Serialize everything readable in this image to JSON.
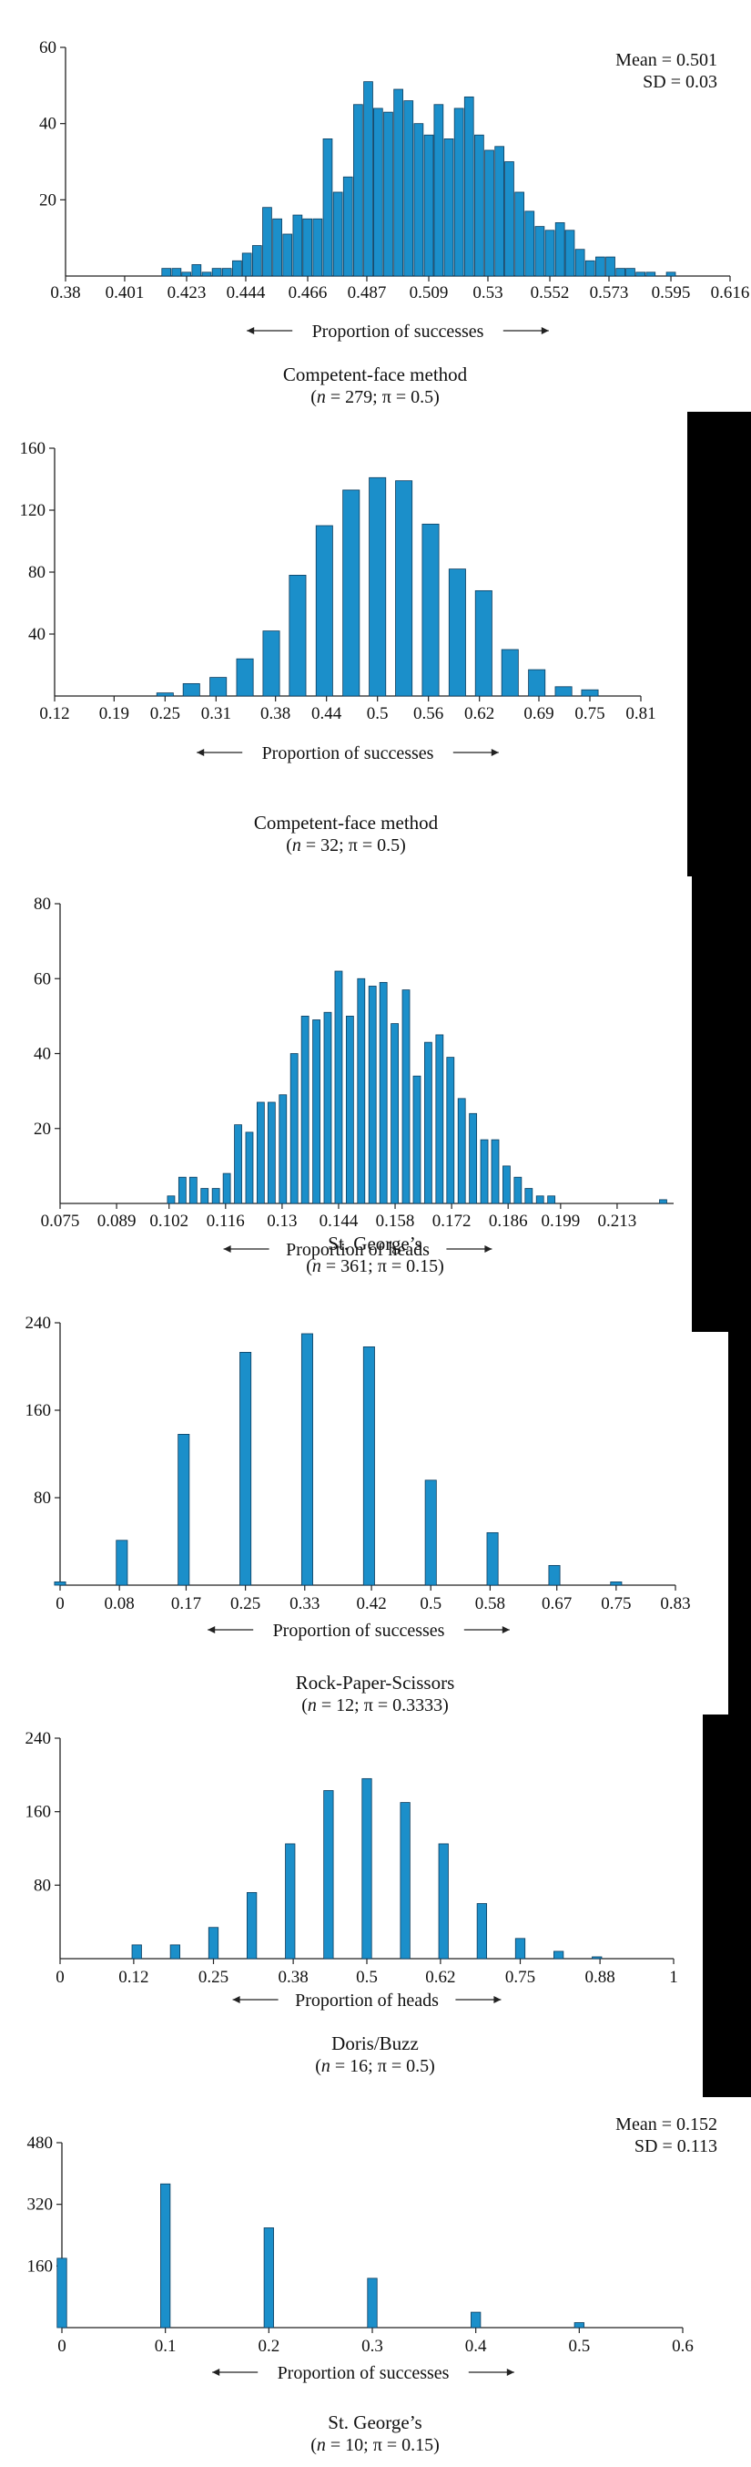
{
  "chart_data": [
    {
      "type": "bar",
      "title": "Competent-face method",
      "subtitle_n": "279",
      "subtitle_pi": "0.5",
      "xlabel": "Proportion of successes",
      "ylim": [
        0,
        60
      ],
      "yticks": [
        20,
        40,
        60
      ],
      "xlim": [
        0.38,
        0.616
      ],
      "xticks": [
        "0.38",
        "0.401",
        "0.423",
        "0.444",
        "0.466",
        "0.487",
        "0.509",
        "0.53",
        "0.552",
        "0.573",
        "0.595",
        "0.616"
      ],
      "stats": [
        "Mean = 0.501",
        "SD = 0.03"
      ],
      "bar_width": 0.0032,
      "x": [
        0.4158,
        0.4194,
        0.4229,
        0.4265,
        0.4301,
        0.4337,
        0.4373,
        0.4409,
        0.4444,
        0.448,
        0.4516,
        0.4552,
        0.4588,
        0.4624,
        0.4659,
        0.4695,
        0.4731,
        0.4767,
        0.4803,
        0.4839,
        0.4875,
        0.491,
        0.4946,
        0.4982,
        0.5018,
        0.5054,
        0.509,
        0.5125,
        0.5161,
        0.5197,
        0.5233,
        0.5269,
        0.5305,
        0.5341,
        0.5376,
        0.5412,
        0.5448,
        0.5484,
        0.552,
        0.5556,
        0.5591,
        0.5627,
        0.5663,
        0.5699,
        0.5735,
        0.5771,
        0.5806,
        0.5842,
        0.5878,
        0.5914,
        0.595
      ],
      "values": [
        2,
        2,
        1,
        3,
        1,
        2,
        2,
        4,
        6,
        8,
        18,
        15,
        11,
        16,
        15,
        15,
        36,
        22,
        26,
        45,
        51,
        44,
        43,
        49,
        46,
        40,
        37,
        45,
        36,
        44,
        47,
        37,
        33,
        34,
        30,
        22,
        17,
        13,
        12,
        14,
        12,
        7,
        4,
        5,
        5,
        2,
        2,
        1,
        1,
        0,
        1
      ]
    },
    {
      "type": "bar",
      "title": "Competent-face method",
      "subtitle_n": "32",
      "subtitle_pi": "0.5",
      "xlabel": "Proportion of successes",
      "ylim": [
        0,
        160
      ],
      "yticks": [
        40,
        80,
        120,
        160
      ],
      "xlim": [
        0.12,
        0.81
      ],
      "xticks": [
        "0.12",
        "0.19",
        "0.25",
        "0.31",
        "0.38",
        "0.44",
        "0.5",
        "0.56",
        "0.62",
        "0.69",
        "0.75",
        "0.81"
      ],
      "bar_width": 0.0195,
      "x": [
        0.25,
        0.281,
        0.3125,
        0.344,
        0.375,
        0.406,
        0.4375,
        0.469,
        0.5,
        0.531,
        0.5625,
        0.594,
        0.625,
        0.656,
        0.6875,
        0.719,
        0.75
      ],
      "values": [
        2,
        8,
        12,
        24,
        42,
        78,
        110,
        133,
        141,
        139,
        111,
        82,
        68,
        30,
        17,
        6,
        4
      ]
    },
    {
      "type": "bar",
      "title": "St. George’s",
      "subtitle_n": "361",
      "subtitle_pi": "0.15",
      "xlabel": "Proportion of heads",
      "ylim": [
        0,
        80
      ],
      "yticks": [
        20,
        40,
        60,
        80
      ],
      "xlim": [
        0.075,
        0.227
      ],
      "xticks": [
        "0.075",
        "0.089",
        "0.102",
        "0.116",
        "0.13",
        "0.144",
        "0.158",
        "0.172",
        "0.186",
        "0.199",
        "0.213"
      ],
      "bar_width": 0.0018,
      "x": [
        0.1025,
        0.1053,
        0.108,
        0.1108,
        0.1136,
        0.1163,
        0.1191,
        0.1219,
        0.1247,
        0.1274,
        0.1302,
        0.133,
        0.1357,
        0.1385,
        0.1413,
        0.144,
        0.1468,
        0.1496,
        0.1524,
        0.1551,
        0.1579,
        0.1607,
        0.1634,
        0.1662,
        0.169,
        0.1717,
        0.1745,
        0.1773,
        0.1801,
        0.1828,
        0.1856,
        0.1884,
        0.1911,
        0.1939,
        0.1967,
        0.2244
      ],
      "values": [
        2,
        7,
        7,
        4,
        4,
        8,
        21,
        19,
        27,
        27,
        29,
        40,
        50,
        49,
        51,
        62,
        50,
        60,
        58,
        59,
        48,
        57,
        34,
        43,
        45,
        39,
        28,
        24,
        17,
        17,
        10,
        7,
        4,
        2,
        2,
        1
      ]
    },
    {
      "type": "bar",
      "title": "Rock-Paper-Scissors",
      "subtitle_n": "12",
      "subtitle_pi": "0.3333",
      "xlabel": "Proportion of successes",
      "ylim": [
        0,
        240
      ],
      "yticks": [
        80,
        160,
        240
      ],
      "xlim": [
        0,
        0.83
      ],
      "xticks": [
        "0",
        "0.08",
        "0.17",
        "0.25",
        "0.33",
        "0.42",
        "0.5",
        "0.58",
        "0.67",
        "0.75",
        "0.83"
      ],
      "bar_width": 0.015,
      "x": [
        0,
        0.0833,
        0.1667,
        0.25,
        0.3333,
        0.4167,
        0.5,
        0.5833,
        0.6667,
        0.75
      ],
      "values": [
        3,
        41,
        138,
        213,
        230,
        218,
        96,
        48,
        18,
        3
      ]
    },
    {
      "type": "bar",
      "title": "Doris/Buzz",
      "subtitle_n": "16",
      "subtitle_pi": "0.5",
      "xlabel": "Proportion of heads",
      "ylim": [
        0,
        240
      ],
      "yticks": [
        80,
        160,
        240
      ],
      "xlim": [
        0,
        1
      ],
      "xticks": [
        "0",
        "0.12",
        "0.25",
        "0.38",
        "0.5",
        "0.62",
        "0.75",
        "0.88",
        "1"
      ],
      "bar_width": 0.0155,
      "x": [
        0.125,
        0.1875,
        0.25,
        0.3125,
        0.375,
        0.4375,
        0.5,
        0.5625,
        0.625,
        0.6875,
        0.75,
        0.8125,
        0.875
      ],
      "values": [
        15,
        15,
        34,
        72,
        125,
        183,
        196,
        170,
        125,
        60,
        22,
        8,
        2
      ]
    },
    {
      "type": "bar",
      "title": "St. George’s",
      "subtitle_n": "10",
      "subtitle_pi": "0.15",
      "xlabel": "Proportion of successes",
      "ylim": [
        0,
        480
      ],
      "yticks": [
        160,
        320,
        480
      ],
      "xlim": [
        0,
        0.6
      ],
      "xticks": [
        "0",
        "0.1",
        "0.2",
        "0.3",
        "0.4",
        "0.5",
        "0.6"
      ],
      "stats": [
        "Mean = 0.152",
        "SD = 0.113"
      ],
      "bar_width": 0.0092,
      "x": [
        0,
        0.1,
        0.2,
        0.3,
        0.4,
        0.5
      ],
      "values": [
        180,
        373,
        259,
        128,
        40,
        13
      ]
    }
  ]
}
